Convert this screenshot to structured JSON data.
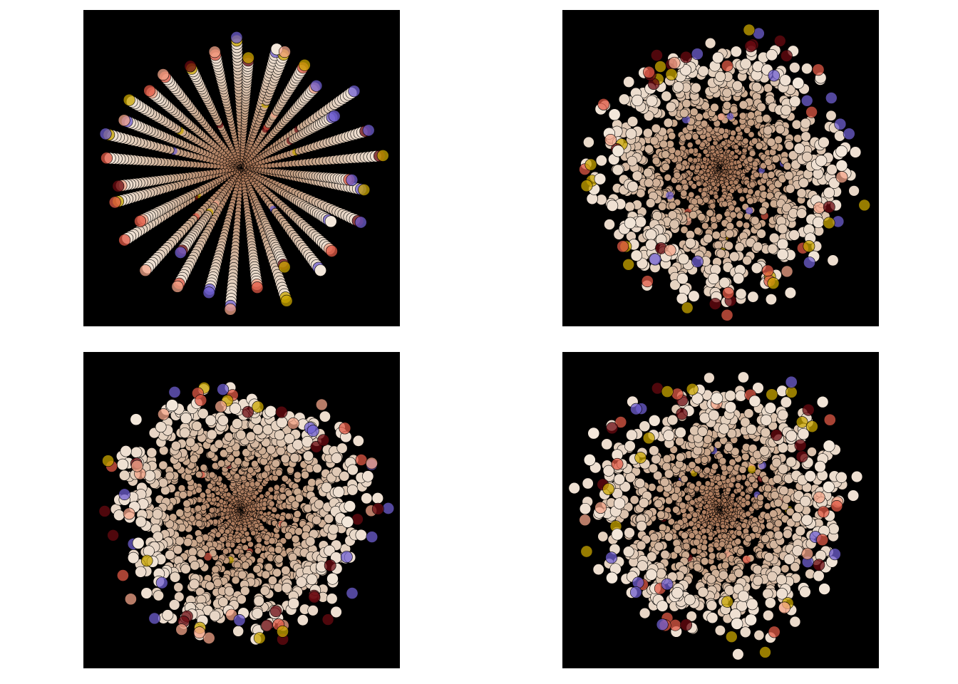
{
  "chart_data": [
    {
      "type": "scatter",
      "title": "",
      "xlabel": "",
      "ylabel": "",
      "axes_visible": false,
      "grid": false,
      "legend": "none",
      "background": "#000000",
      "pattern": "radial-spokes",
      "spokes": 36,
      "points_per_spoke": 40,
      "spoke_length": 1.0,
      "spread": 0.0,
      "twist": 0.0,
      "point_size_range": [
        0.5,
        3.0
      ]
    },
    {
      "type": "scatter",
      "title": "",
      "xlabel": "",
      "ylabel": "",
      "axes_visible": false,
      "grid": false,
      "legend": "none",
      "background": "#000000",
      "pattern": "radial-scattered",
      "spokes": 36,
      "points_per_spoke": 40,
      "spoke_length": 1.0,
      "spread": 0.45,
      "twist": 0.0,
      "point_size_range": [
        0.5,
        3.0
      ]
    },
    {
      "type": "scatter",
      "title": "",
      "xlabel": "",
      "ylabel": "",
      "axes_visible": false,
      "grid": false,
      "legend": "none",
      "background": "#000000",
      "pattern": "radial-clustered",
      "spokes": 36,
      "points_per_spoke": 40,
      "spoke_length": 1.0,
      "spread": 0.25,
      "twist": 0.35,
      "point_size_range": [
        0.5,
        3.0
      ]
    },
    {
      "type": "scatter",
      "title": "",
      "xlabel": "",
      "ylabel": "",
      "axes_visible": false,
      "grid": false,
      "legend": "none",
      "background": "#000000",
      "pattern": "radial-swirl",
      "spokes": 36,
      "points_per_spoke": 40,
      "spoke_length": 1.0,
      "spread": 0.5,
      "twist": 1.2,
      "point_size_range": [
        0.5,
        3.0
      ]
    }
  ],
  "colors": {
    "core": "#a0694a",
    "mid": "#c8a488",
    "outer": "#f3e7da",
    "highlight_red": "#e05a46",
    "highlight_salmon": "#f4a58a",
    "highlight_gold": "#c9a600",
    "highlight_violet": "#6f5fd0",
    "highlight_maroon": "#6a0a10",
    "outline": "#000000"
  }
}
